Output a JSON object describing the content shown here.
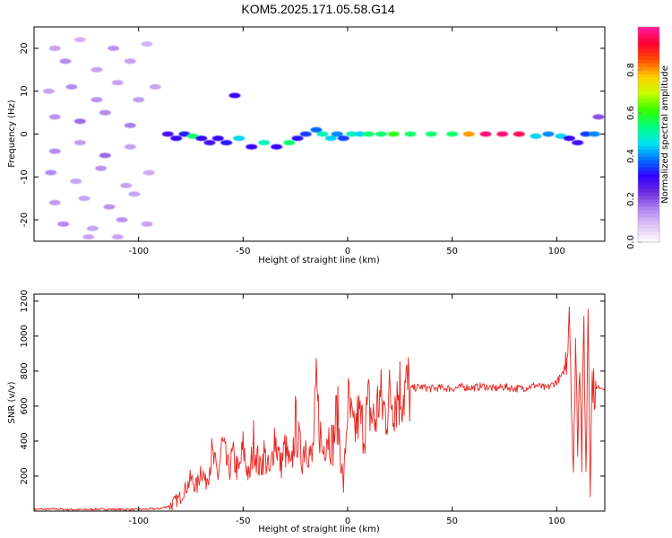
{
  "title": "KOM5.2025.171.05.58.G14",
  "chart_data": [
    {
      "type": "heatmap",
      "xlabel": "Height of straight line (km)",
      "ylabel": "Frequency (Hz)",
      "xlim": [
        -150,
        123
      ],
      "ylim": [
        -25,
        25
      ],
      "xticks": [
        -100,
        -50,
        0,
        50,
        100
      ],
      "yticks": [
        -20,
        -10,
        0,
        10,
        20
      ],
      "colorbar": {
        "label": "Normalized spectral amplitude",
        "range": [
          0.0,
          1.0
        ],
        "ticks": [
          0.0,
          0.2,
          0.4,
          0.6,
          0.8
        ],
        "colormap": [
          "#ffffff",
          "#e2c6f7",
          "#b088f0",
          "#6f2ce0",
          "#3000ff",
          "#0070ff",
          "#00e6f0",
          "#00ff80",
          "#33ff00",
          "#c8ff00",
          "#ffd000",
          "#ff5000",
          "#ff0030",
          "#ff1aa0"
        ]
      },
      "blobs": [
        {
          "x": -140,
          "y": 20,
          "v": 0.12
        },
        {
          "x": -135,
          "y": 17,
          "v": 0.15
        },
        {
          "x": -128,
          "y": 22,
          "v": 0.1
        },
        {
          "x": -120,
          "y": 15,
          "v": 0.12
        },
        {
          "x": -112,
          "y": 20,
          "v": 0.14
        },
        {
          "x": -104,
          "y": 17,
          "v": 0.12
        },
        {
          "x": -96,
          "y": 21,
          "v": 0.1
        },
        {
          "x": -143,
          "y": 10,
          "v": 0.12
        },
        {
          "x": -132,
          "y": 11,
          "v": 0.15
        },
        {
          "x": -120,
          "y": 8,
          "v": 0.14
        },
        {
          "x": -110,
          "y": 12,
          "v": 0.12
        },
        {
          "x": -100,
          "y": 8,
          "v": 0.13
        },
        {
          "x": -92,
          "y": 11,
          "v": 0.12
        },
        {
          "x": -140,
          "y": 4,
          "v": 0.14
        },
        {
          "x": -128,
          "y": 3,
          "v": 0.18
        },
        {
          "x": -116,
          "y": 5,
          "v": 0.15
        },
        {
          "x": -104,
          "y": 2,
          "v": 0.16
        },
        {
          "x": -140,
          "y": -4,
          "v": 0.15
        },
        {
          "x": -128,
          "y": -2,
          "v": 0.13
        },
        {
          "x": -116,
          "y": -5,
          "v": 0.18
        },
        {
          "x": -104,
          "y": -3,
          "v": 0.12
        },
        {
          "x": -142,
          "y": -9,
          "v": 0.15
        },
        {
          "x": -130,
          "y": -11,
          "v": 0.12
        },
        {
          "x": -118,
          "y": -8,
          "v": 0.14
        },
        {
          "x": -106,
          "y": -12,
          "v": 0.12
        },
        {
          "x": -95,
          "y": -9,
          "v": 0.11
        },
        {
          "x": -140,
          "y": -16,
          "v": 0.13
        },
        {
          "x": -126,
          "y": -15,
          "v": 0.12
        },
        {
          "x": -114,
          "y": -17,
          "v": 0.14
        },
        {
          "x": -102,
          "y": -14,
          "v": 0.12
        },
        {
          "x": -136,
          "y": -21,
          "v": 0.15
        },
        {
          "x": -122,
          "y": -22,
          "v": 0.12
        },
        {
          "x": -108,
          "y": -20,
          "v": 0.14
        },
        {
          "x": -96,
          "y": -21,
          "v": 0.12
        },
        {
          "x": -124,
          "y": -24,
          "v": 0.12
        },
        {
          "x": -110,
          "y": -24,
          "v": 0.12
        },
        {
          "x": -86,
          "y": 0,
          "v": 0.28
        },
        {
          "x": -82,
          "y": -1,
          "v": 0.3
        },
        {
          "x": -78,
          "y": 0,
          "v": 0.32
        },
        {
          "x": -74,
          "y": -0.5,
          "v": 0.55
        },
        {
          "x": -70,
          "y": -1,
          "v": 0.3
        },
        {
          "x": -66,
          "y": -2,
          "v": 0.28
        },
        {
          "x": -62,
          "y": -1,
          "v": 0.3
        },
        {
          "x": -58,
          "y": -2,
          "v": 0.32
        },
        {
          "x": -54,
          "y": 9,
          "v": 0.3
        },
        {
          "x": -52,
          "y": -1,
          "v": 0.45
        },
        {
          "x": -46,
          "y": -3,
          "v": 0.3
        },
        {
          "x": -40,
          "y": -2,
          "v": 0.5
        },
        {
          "x": -34,
          "y": -3,
          "v": 0.3
        },
        {
          "x": -28,
          "y": -2,
          "v": 0.55
        },
        {
          "x": -24,
          "y": -1,
          "v": 0.32
        },
        {
          "x": -20,
          "y": 0,
          "v": 0.35
        },
        {
          "x": -15,
          "y": 1,
          "v": 0.38
        },
        {
          "x": -12,
          "y": 0,
          "v": 0.5
        },
        {
          "x": -8,
          "y": -1,
          "v": 0.45
        },
        {
          "x": -5,
          "y": 0,
          "v": 0.4
        },
        {
          "x": -2,
          "y": -1,
          "v": 0.35
        },
        {
          "x": 2,
          "y": 0,
          "v": 0.5
        },
        {
          "x": 6,
          "y": 0,
          "v": 0.45
        },
        {
          "x": 10,
          "y": 0,
          "v": 0.55
        },
        {
          "x": 16,
          "y": 0,
          "v": 0.55
        },
        {
          "x": 22,
          "y": 0,
          "v": 0.6
        },
        {
          "x": 30,
          "y": 0,
          "v": 0.55
        },
        {
          "x": 40,
          "y": 0,
          "v": 0.55
        },
        {
          "x": 50,
          "y": 0,
          "v": 0.55
        },
        {
          "x": 58,
          "y": 0,
          "v": 0.8
        },
        {
          "x": 66,
          "y": 0,
          "v": 0.97
        },
        {
          "x": 74,
          "y": 0,
          "v": 0.97
        },
        {
          "x": 82,
          "y": 0,
          "v": 0.95
        },
        {
          "x": 90,
          "y": -0.5,
          "v": 0.45
        },
        {
          "x": 96,
          "y": 0,
          "v": 0.4
        },
        {
          "x": 102,
          "y": -0.5,
          "v": 0.45
        },
        {
          "x": 106,
          "y": -1,
          "v": 0.3
        },
        {
          "x": 110,
          "y": -2,
          "v": 0.28
        },
        {
          "x": 114,
          "y": 0,
          "v": 0.35
        },
        {
          "x": 118,
          "y": 0,
          "v": 0.4
        },
        {
          "x": 120,
          "y": 4,
          "v": 0.2
        }
      ]
    },
    {
      "type": "line",
      "xlabel": "Height of straight line (km)",
      "ylabel": "SNR (v/v)",
      "xlim": [
        -150,
        123
      ],
      "ylim": [
        0,
        1240
      ],
      "xticks": [
        -100,
        -50,
        0,
        50,
        100
      ],
      "yticks": [
        200,
        400,
        600,
        800,
        1000,
        1200
      ],
      "series": [
        {
          "color": "#e8241f",
          "x": [
            -150,
            -140,
            -130,
            -120,
            -110,
            -100,
            -90,
            -85,
            -80,
            -75,
            -72,
            -70,
            -68,
            -65,
            -62,
            -60,
            -57,
            -55,
            -52,
            -50,
            -47,
            -45,
            -42,
            -40,
            -37,
            -35,
            -32,
            -30,
            -27,
            -25,
            -22,
            -20,
            -17,
            -15,
            -12,
            -10,
            -7,
            -5,
            -2,
            0,
            3,
            5,
            8,
            10,
            13,
            15,
            18,
            20,
            25,
            30,
            35,
            40,
            45,
            50,
            55,
            60,
            65,
            70,
            75,
            80,
            85,
            90,
            95,
            100,
            103,
            105,
            106,
            107,
            108,
            109,
            110,
            111,
            112,
            113,
            114,
            115,
            116,
            117,
            118,
            120,
            123
          ],
          "y": [
            10,
            12,
            8,
            11,
            10,
            9,
            14,
            30,
            80,
            180,
            140,
            260,
            160,
            320,
            200,
            380,
            230,
            310,
            220,
            360,
            180,
            400,
            240,
            330,
            200,
            440,
            260,
            360,
            230,
            500,
            300,
            410,
            280,
            660,
            330,
            460,
            380,
            580,
            130,
            620,
            430,
            540,
            470,
            600,
            500,
            650,
            560,
            640,
            690,
            700,
            710,
            700,
            705,
            700,
            710,
            705,
            715,
            700,
            710,
            700,
            705,
            720,
            700,
            740,
            780,
            900,
            1200,
            700,
            150,
            1000,
            400,
            900,
            300,
            1100,
            180,
            1200,
            200,
            760,
            680,
            710,
            700
          ]
        }
      ]
    }
  ]
}
